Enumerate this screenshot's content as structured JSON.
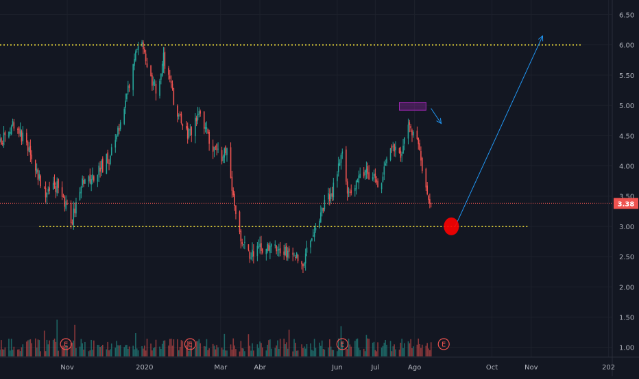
{
  "chart_data": {
    "type": "candlestick",
    "y_axis": {
      "ticks": [
        1.0,
        1.5,
        2.0,
        2.5,
        3.0,
        3.5,
        4.0,
        4.5,
        5.0,
        5.5,
        6.0,
        6.5
      ],
      "tick_labels": [
        "1.00",
        "1.50",
        "2.00",
        "2.50",
        "3.00",
        "3.50",
        "4.00",
        "4.50",
        "5.00",
        "5.50",
        "6.00",
        "6.50"
      ],
      "range": [
        0.85,
        6.72
      ]
    },
    "x_axis": {
      "labels": [
        "Nov",
        "2020",
        "Mar",
        "Abr",
        "Jun",
        "Jul",
        "Ago",
        "Oct",
        "Nov",
        "202"
      ],
      "label_dates": [
        "2019-11-01",
        "2020-01-01",
        "2020-03-01",
        "2020-04-01",
        "2020-06-01",
        "2020-07-01",
        "2020-08-01",
        "2020-10-01",
        "2020-11-01",
        "2021-01-01"
      ],
      "range": [
        "2019-09-09",
        "2021-01-25"
      ]
    },
    "last_price": {
      "value": 3.38,
      "label": "3.38",
      "color": "#ef5350"
    },
    "anchors": [
      [
        "2019-09-09",
        4.4
      ],
      [
        "2019-09-20",
        4.7
      ],
      [
        "2019-10-01",
        4.3
      ],
      [
        "2019-10-15",
        3.5
      ],
      [
        "2019-10-25",
        3.7
      ],
      [
        "2019-11-05",
        3.1
      ],
      [
        "2019-11-12",
        3.7
      ],
      [
        "2019-11-25",
        3.9
      ],
      [
        "2019-12-06",
        4.2
      ],
      [
        "2019-12-20",
        5.3
      ],
      [
        "2019-12-28",
        6.1
      ],
      [
        "2020-01-10",
        5.2
      ],
      [
        "2020-01-16",
        5.8
      ],
      [
        "2020-01-25",
        5.0
      ],
      [
        "2020-02-05",
        4.5
      ],
      [
        "2020-02-14",
        4.9
      ],
      [
        "2020-02-21",
        4.4
      ],
      [
        "2020-03-03",
        4.1
      ],
      [
        "2020-03-06",
        4.4
      ],
      [
        "2020-03-09",
        3.8
      ],
      [
        "2020-03-12",
        3.4
      ],
      [
        "2020-03-16",
        2.8
      ],
      [
        "2020-03-25",
        2.5
      ],
      [
        "2020-04-06",
        2.7
      ],
      [
        "2020-04-20",
        2.6
      ],
      [
        "2020-05-05",
        2.4
      ],
      [
        "2020-05-12",
        2.9
      ],
      [
        "2020-05-20",
        3.3
      ],
      [
        "2020-05-28",
        3.6
      ],
      [
        "2020-06-05",
        4.2
      ],
      [
        "2020-06-10",
        3.5
      ],
      [
        "2020-06-20",
        3.9
      ],
      [
        "2020-07-05",
        3.7
      ],
      [
        "2020-07-12",
        4.4
      ],
      [
        "2020-07-20",
        4.1
      ],
      [
        "2020-07-27",
        4.7
      ],
      [
        "2020-08-03",
        4.45
      ],
      [
        "2020-08-06",
        4.0
      ],
      [
        "2020-08-10",
        3.7
      ],
      [
        "2020-08-14",
        3.38
      ]
    ],
    "volume": {
      "max_bar_date": "2019-11-24",
      "max_bar_height_price_units": 1.25,
      "earnings_markers": [
        {
          "date": "2019-10-31",
          "label": "E"
        },
        {
          "date": "2020-02-06",
          "label": "E"
        },
        {
          "date": "2020-06-05",
          "label": "E"
        },
        {
          "date": "2020-08-24",
          "label": "E"
        }
      ]
    },
    "annotations": {
      "resistance_line": {
        "price": 6.0,
        "start": "2019-09-09",
        "end": "2020-12-10",
        "color": "#ffeb3b",
        "style": "dotted"
      },
      "support_line": {
        "price": 3.0,
        "start": "2019-10-10",
        "end": "2020-10-30",
        "color": "#ffeb3b",
        "style": "dotted"
      },
      "last_price_line": {
        "price": 3.38,
        "color": "#ef5350",
        "style": "dotted"
      },
      "target_circle": {
        "date": "2020-08-30",
        "price": 3.0,
        "color": "#ff0000"
      },
      "target_arrow": {
        "from_date": "2020-09-02",
        "from_price": 3.0,
        "to_date": "2020-11-10",
        "to_price": 6.15,
        "color": "#2196f3"
      },
      "small_arrow": {
        "from_date": "2020-08-14",
        "from_price": 4.95,
        "to_date": "2020-08-22",
        "to_price": 4.7,
        "color": "#2196f3"
      },
      "highlight_box": {
        "start": "2020-07-20",
        "end": "2020-08-10",
        "low": 4.92,
        "high": 5.05,
        "color": "#9c27b0"
      }
    },
    "colors": {
      "up": "#26a69a",
      "down": "#ef5350",
      "background": "#131722",
      "grid": "#1e222d",
      "axis_text": "#b2b5be"
    }
  }
}
